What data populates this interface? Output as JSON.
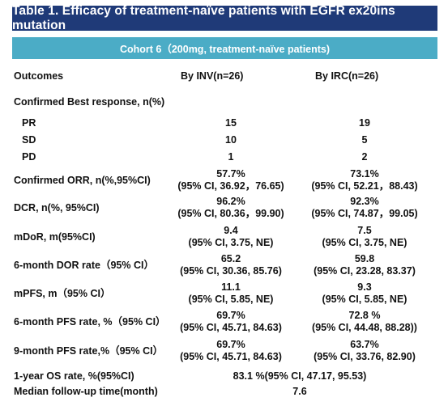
{
  "title": "Table 1. Efficacy of treatment-naïve patients with EGFR ex20ins mutation",
  "cohort": "Cohort 6（200mg, treatment-naïve patients)",
  "columns": [
    "Outcomes",
    "By  INV(n=26)",
    "By IRC(n=26)"
  ],
  "section": "Confirmed Best response, n(%)",
  "responses": [
    {
      "label": "PR",
      "inv": "15",
      "irc": "19"
    },
    {
      "label": "SD",
      "inv": "10",
      "irc": "5"
    },
    {
      "label": "PD",
      "inv": "1",
      "irc": "2"
    }
  ],
  "metrics": [
    {
      "label": "Confirmed ORR, n(%,95%CI)",
      "inv": [
        "57.7%",
        "(95% CI, 36.92，76.65)"
      ],
      "irc": [
        "73.1%",
        "(95% CI, 52.21，88.43)"
      ]
    },
    {
      "label": "DCR, n(%, 95%CI)",
      "inv": [
        "96.2%",
        "(95% CI, 80.36，99.90)"
      ],
      "irc": [
        "92.3%",
        "(95% CI, 74.87，99.05)"
      ]
    },
    {
      "label": "mDoR, m(95%CI)",
      "inv": [
        "9.4",
        "(95% CI, 3.75, NE)"
      ],
      "irc": [
        "7.5",
        "(95% CI, 3.75, NE)"
      ]
    },
    {
      "label": "6-month DOR rate（95% CI）",
      "inv": [
        "65.2",
        "(95% CI, 30.36, 85.76)"
      ],
      "irc": [
        "59.8",
        "(95% CI, 23.28, 83.37)"
      ]
    },
    {
      "label": "mPFS, m（95% CI）",
      "inv": [
        "11.1",
        "(95% CI, 5.85, NE)"
      ],
      "irc": [
        "9.3",
        "(95% CI, 5.85, NE)"
      ]
    },
    {
      "label": "6-month PFS rate, %（95% CI）",
      "inv": [
        "69.7%",
        "(95% CI, 45.71, 84.63)"
      ],
      "irc": [
        "72.8 %",
        "(95% CI, 44.48, 88.28))"
      ]
    },
    {
      "label": "9-month PFS rate,%（95% CI）",
      "inv": [
        "69.7%",
        "(95% CI, 45.71, 84.63)"
      ],
      "irc": [
        "63.7%",
        "(95% CI, 33.76, 82.90)"
      ]
    }
  ],
  "os": {
    "label": "1-year OS rate, %(95%CI)",
    "value": "83.1 %(95% CI, 47.17, 95.53)"
  },
  "followup": {
    "label": "Median follow-up time(month)",
    "value": "7.6"
  }
}
